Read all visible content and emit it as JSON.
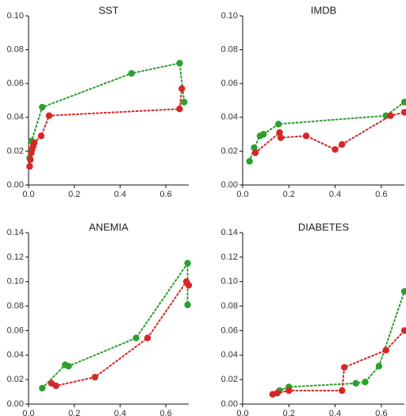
{
  "chart_data": [
    {
      "type": "scatter",
      "title": "SST",
      "xlabel": "",
      "ylabel": "",
      "xlim": [
        0,
        0.7
      ],
      "ylim": [
        0,
        0.1
      ],
      "x_ticks": [
        "0.0",
        "0.2",
        "0.4",
        "0.6"
      ],
      "y_ticks": [
        "0.00",
        "0.02",
        "0.04",
        "0.06",
        "0.08",
        "0.10"
      ],
      "grid": false,
      "series": [
        {
          "color": "#2ca02c",
          "style": "dotted-line-with-markers",
          "points": [
            [
              0.005,
              0.016
            ],
            [
              0.01,
              0.02
            ],
            [
              0.013,
              0.026
            ],
            [
              0.06,
              0.046
            ],
            [
              0.45,
              0.066
            ],
            [
              0.66,
              0.072
            ],
            [
              0.68,
              0.049
            ]
          ]
        },
        {
          "color": "#d62728",
          "style": "dotted-line-with-markers",
          "points": [
            [
              0.005,
              0.011
            ],
            [
              0.008,
              0.015
            ],
            [
              0.012,
              0.019
            ],
            [
              0.015,
              0.021
            ],
            [
              0.02,
              0.023
            ],
            [
              0.025,
              0.025
            ],
            [
              0.055,
              0.029
            ],
            [
              0.09,
              0.041
            ],
            [
              0.66,
              0.045
            ],
            [
              0.67,
              0.057
            ]
          ]
        }
      ]
    },
    {
      "type": "scatter",
      "title": "IMDB",
      "xlabel": "",
      "ylabel": "",
      "xlim": [
        0,
        0.7
      ],
      "ylim": [
        0,
        0.1
      ],
      "x_ticks": [
        "0.0",
        "0.2",
        "0.4",
        "0.6"
      ],
      "y_ticks": [
        "0.00",
        "0.02",
        "0.04",
        "0.06",
        "0.08",
        "0.10"
      ],
      "grid": false,
      "series": [
        {
          "color": "#2ca02c",
          "style": "dotted-line-with-markers",
          "points": [
            [
              0.03,
              0.014
            ],
            [
              0.05,
              0.022
            ],
            [
              0.075,
              0.029
            ],
            [
              0.09,
              0.03
            ],
            [
              0.155,
              0.036
            ],
            [
              0.62,
              0.041
            ],
            [
              0.7,
              0.049
            ]
          ]
        },
        {
          "color": "#d62728",
          "style": "dotted-line-with-markers",
          "points": [
            [
              0.055,
              0.019
            ],
            [
              0.16,
              0.031
            ],
            [
              0.165,
              0.028
            ],
            [
              0.275,
              0.029
            ],
            [
              0.4,
              0.021
            ],
            [
              0.43,
              0.024
            ],
            [
              0.64,
              0.041
            ],
            [
              0.7,
              0.043
            ]
          ]
        }
      ]
    },
    {
      "type": "scatter",
      "title": "ANEMIA",
      "xlabel": "",
      "ylabel": "",
      "xlim": [
        0,
        0.7
      ],
      "ylim": [
        0,
        0.14
      ],
      "x_ticks": [
        "0.0",
        "0.2",
        "0.4",
        "0.6"
      ],
      "y_ticks": [
        "0.00",
        "0.02",
        "0.04",
        "0.06",
        "0.08",
        "0.10",
        "0.12",
        "0.14"
      ],
      "grid": false,
      "series": [
        {
          "color": "#2ca02c",
          "style": "dotted-line-with-markers",
          "points": [
            [
              0.06,
              0.013
            ],
            [
              0.16,
              0.032
            ],
            [
              0.175,
              0.031
            ],
            [
              0.47,
              0.054
            ],
            [
              0.695,
              0.115
            ],
            [
              0.695,
              0.081
            ]
          ]
        },
        {
          "color": "#d62728",
          "style": "dotted-line-with-markers",
          "points": [
            [
              0.1,
              0.017
            ],
            [
              0.12,
              0.015
            ],
            [
              0.29,
              0.022
            ],
            [
              0.52,
              0.054
            ],
            [
              0.69,
              0.1
            ],
            [
              0.7,
              0.097
            ]
          ]
        }
      ]
    },
    {
      "type": "scatter",
      "title": "DIABETES",
      "xlabel": "",
      "ylabel": "",
      "xlim": [
        0,
        0.7
      ],
      "ylim": [
        0,
        0.14
      ],
      "x_ticks": [
        "0.0",
        "0.2",
        "0.4",
        "0.6"
      ],
      "y_ticks": [
        "0.00",
        "0.02",
        "0.04",
        "0.06",
        "0.08",
        "0.10",
        "0.12",
        "0.14"
      ],
      "grid": false,
      "series": [
        {
          "color": "#2ca02c",
          "style": "dotted-line-with-markers",
          "points": [
            [
              0.13,
              0.008
            ],
            [
              0.16,
              0.011
            ],
            [
              0.2,
              0.014
            ],
            [
              0.49,
              0.017
            ],
            [
              0.53,
              0.018
            ],
            [
              0.59,
              0.031
            ],
            [
              0.7,
              0.092
            ]
          ]
        },
        {
          "color": "#d62728",
          "style": "dotted-line-with-markers",
          "points": [
            [
              0.13,
              0.008
            ],
            [
              0.15,
              0.009
            ],
            [
              0.2,
              0.011
            ],
            [
              0.43,
              0.011
            ],
            [
              0.44,
              0.03
            ],
            [
              0.62,
              0.044
            ],
            [
              0.7,
              0.06
            ]
          ]
        }
      ]
    }
  ]
}
